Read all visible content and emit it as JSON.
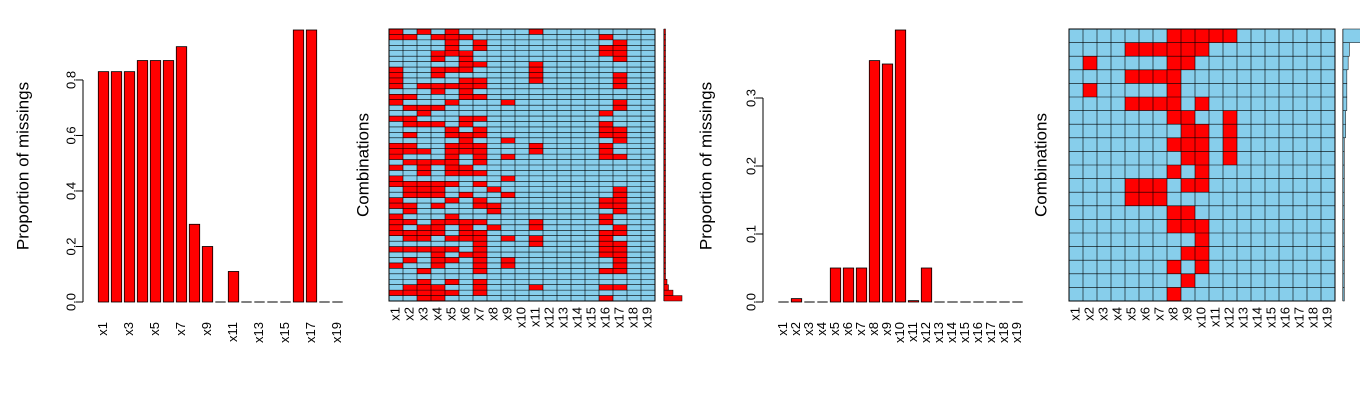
{
  "variables": [
    "x1",
    "x2",
    "x3",
    "x4",
    "x5",
    "x6",
    "x7",
    "x8",
    "x9",
    "x10",
    "x11",
    "x12",
    "x13",
    "x14",
    "x15",
    "x16",
    "x17",
    "x18",
    "x19"
  ],
  "colors": {
    "missing": "#ff0000",
    "observed": "#87ceeb"
  },
  "chart_data": [
    {
      "type": "bar",
      "ylabel": "Proportion of missings",
      "xlabel": "",
      "ylim": [
        0,
        0.98
      ],
      "yticks": [
        0.0,
        0.2,
        0.4,
        0.6,
        0.8
      ],
      "ytick_labels": [
        "0.0",
        "0.2",
        "0.4",
        "0.6",
        "0.8"
      ],
      "xtick_labels": [
        "x1",
        "x3",
        "x5",
        "x7",
        "x9",
        "x11",
        "x13",
        "x15",
        "x17",
        "x19"
      ],
      "categories": [
        "x1",
        "x2",
        "x3",
        "x4",
        "x5",
        "x6",
        "x7",
        "x8",
        "x9",
        "x10",
        "x11",
        "x12",
        "x13",
        "x14",
        "x15",
        "x16",
        "x17",
        "x18",
        "x19"
      ],
      "values": [
        0.83,
        0.83,
        0.83,
        0.87,
        0.87,
        0.87,
        0.92,
        0.28,
        0.2,
        0.0,
        0.11,
        0.0,
        0.0,
        0.0,
        0.0,
        0.98,
        0.98,
        0.0,
        0.0
      ]
    },
    {
      "type": "heatmap",
      "ylabel": "Combinations",
      "xtick_labels": [
        "x1",
        "x2",
        "x3",
        "x4",
        "x5",
        "x6",
        "x7",
        "x8",
        "x9",
        "x10",
        "x11",
        "x12",
        "x13",
        "x14",
        "x15",
        "x16",
        "x17",
        "x18",
        "x19"
      ],
      "rows": 50,
      "side_bar_frequencies": [
        12,
        6,
        3,
        2,
        1,
        1,
        1,
        1,
        1,
        1,
        1,
        1,
        1,
        1,
        1,
        1,
        1,
        1,
        1,
        1,
        1,
        1,
        1,
        1,
        1,
        1,
        1,
        1,
        1,
        1,
        1,
        1,
        1,
        1,
        1,
        1,
        1,
        1,
        1,
        1,
        1,
        1,
        1,
        1,
        1,
        1,
        1,
        1,
        1,
        1
      ]
    },
    {
      "type": "bar",
      "ylabel": "Proportion of missings",
      "xlabel": "",
      "ylim": [
        0,
        0.4
      ],
      "yticks": [
        0.0,
        0.1,
        0.2,
        0.3
      ],
      "ytick_labels": [
        "0.0",
        "0.1",
        "0.2",
        "0.3"
      ],
      "xtick_labels": [
        "x1",
        "x2",
        "x3",
        "x4",
        "x5",
        "x6",
        "x7",
        "x8",
        "x9",
        "x10",
        "x11",
        "x12",
        "x13",
        "x14",
        "x15",
        "x16",
        "x17",
        "x18",
        "x19"
      ],
      "categories": [
        "x1",
        "x2",
        "x3",
        "x4",
        "x5",
        "x6",
        "x7",
        "x8",
        "x9",
        "x10",
        "x11",
        "x12",
        "x13",
        "x14",
        "x15",
        "x16",
        "x17",
        "x18",
        "x19"
      ],
      "values": [
        0.0,
        0.005,
        0.0,
        0.0,
        0.05,
        0.05,
        0.05,
        0.355,
        0.35,
        0.4,
        0.002,
        0.05,
        0.0,
        0.0,
        0.0,
        0.0,
        0.0,
        0.0,
        0.0
      ]
    },
    {
      "type": "heatmap",
      "ylabel": "Combinations",
      "xtick_labels": [
        "x1",
        "x2",
        "x3",
        "x4",
        "x5",
        "x6",
        "x7",
        "x8",
        "x9",
        "x10",
        "x11",
        "x12",
        "x13",
        "x14",
        "x15",
        "x16",
        "x17",
        "x18",
        "x19"
      ],
      "rows": 20,
      "side_bar_frequencies": [
        1,
        1,
        1,
        1,
        1,
        1,
        1,
        1,
        1,
        1,
        1,
        1,
        2,
        2,
        3,
        3,
        3,
        4,
        5,
        14
      ],
      "patterns": [
        [
          0,
          0,
          0,
          0,
          0,
          0,
          0,
          1,
          1,
          1,
          1,
          1,
          0,
          0,
          0,
          0,
          0,
          0,
          0
        ],
        [
          0,
          0,
          0,
          0,
          1,
          1,
          1,
          1,
          1,
          1,
          0,
          0,
          0,
          0,
          0,
          0,
          0,
          0,
          0
        ],
        [
          0,
          1,
          0,
          0,
          0,
          0,
          0,
          1,
          1,
          0,
          0,
          0,
          0,
          0,
          0,
          0,
          0,
          0,
          0
        ],
        [
          0,
          0,
          0,
          0,
          1,
          1,
          1,
          1,
          0,
          0,
          0,
          0,
          0,
          0,
          0,
          0,
          0,
          0,
          0
        ],
        [
          0,
          1,
          0,
          0,
          0,
          0,
          0,
          1,
          0,
          0,
          0,
          0,
          0,
          0,
          0,
          0,
          0,
          0,
          0
        ],
        [
          0,
          0,
          0,
          0,
          1,
          1,
          1,
          1,
          0,
          1,
          0,
          0,
          0,
          0,
          0,
          0,
          0,
          0,
          0
        ],
        [
          0,
          0,
          0,
          0,
          0,
          0,
          0,
          1,
          1,
          0,
          0,
          1,
          0,
          0,
          0,
          0,
          0,
          0,
          0
        ],
        [
          0,
          0,
          0,
          0,
          0,
          0,
          0,
          0,
          1,
          1,
          0,
          1,
          0,
          0,
          0,
          0,
          0,
          0,
          0
        ],
        [
          0,
          0,
          0,
          0,
          0,
          0,
          0,
          1,
          1,
          1,
          0,
          1,
          0,
          0,
          0,
          0,
          0,
          0,
          0
        ],
        [
          0,
          0,
          0,
          0,
          0,
          0,
          0,
          0,
          1,
          1,
          0,
          1,
          0,
          0,
          0,
          0,
          0,
          0,
          0
        ],
        [
          0,
          0,
          0,
          0,
          0,
          0,
          0,
          1,
          0,
          1,
          0,
          0,
          0,
          0,
          0,
          0,
          0,
          0,
          0
        ],
        [
          0,
          0,
          0,
          0,
          1,
          1,
          1,
          0,
          1,
          1,
          0,
          0,
          0,
          0,
          0,
          0,
          0,
          0,
          0
        ],
        [
          0,
          0,
          0,
          0,
          1,
          1,
          1,
          0,
          0,
          0,
          0,
          0,
          0,
          0,
          0,
          0,
          0,
          0,
          0
        ],
        [
          0,
          0,
          0,
          0,
          0,
          0,
          0,
          1,
          1,
          0,
          0,
          0,
          0,
          0,
          0,
          0,
          0,
          0,
          0
        ],
        [
          0,
          0,
          0,
          0,
          0,
          0,
          0,
          1,
          1,
          1,
          0,
          0,
          0,
          0,
          0,
          0,
          0,
          0,
          0
        ],
        [
          0,
          0,
          0,
          0,
          0,
          0,
          0,
          0,
          0,
          1,
          0,
          0,
          0,
          0,
          0,
          0,
          0,
          0,
          0
        ],
        [
          0,
          0,
          0,
          0,
          0,
          0,
          0,
          0,
          1,
          1,
          0,
          0,
          0,
          0,
          0,
          0,
          0,
          0,
          0
        ],
        [
          0,
          0,
          0,
          0,
          0,
          0,
          0,
          1,
          0,
          1,
          0,
          0,
          0,
          0,
          0,
          0,
          0,
          0,
          0
        ],
        [
          0,
          0,
          0,
          0,
          0,
          0,
          0,
          0,
          1,
          0,
          0,
          0,
          0,
          0,
          0,
          0,
          0,
          0,
          0
        ],
        [
          0,
          0,
          0,
          0,
          0,
          0,
          0,
          1,
          0,
          0,
          0,
          0,
          0,
          0,
          0,
          0,
          0,
          0,
          0
        ]
      ]
    }
  ]
}
